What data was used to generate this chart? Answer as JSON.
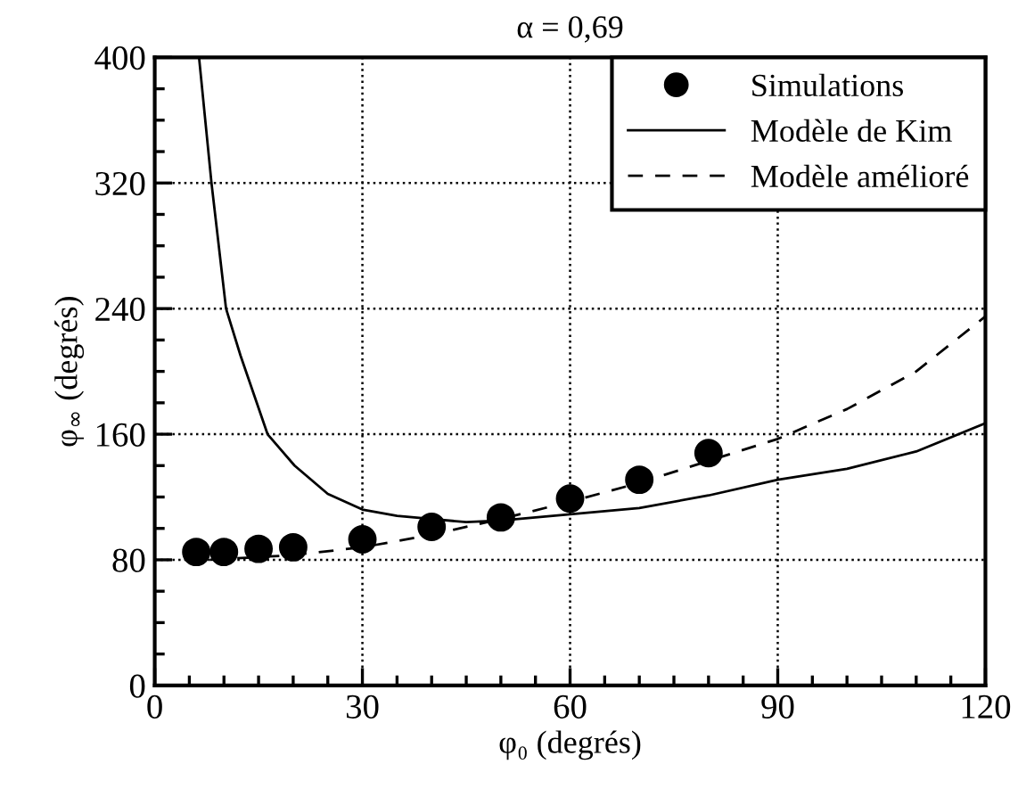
{
  "chart_data": {
    "type": "line",
    "title": "α = 0,69",
    "xlabel": "φ₀ (degrés)",
    "ylabel": "φ$_{∞}$ (degrés)",
    "xlim": [
      0,
      120
    ],
    "ylim": [
      0,
      400
    ],
    "xticks": [
      0,
      {
        "value": 5,
        "label": null
      },
      {
        "value": 10,
        "label": null
      },
      {
        "value": 15,
        "label": null
      },
      {
        "value": 20,
        "label": null
      },
      {
        "value": 25,
        "label": null
      },
      30,
      {
        "value": 35,
        "label": null
      },
      {
        "value": 40,
        "label": null
      },
      {
        "value": 45,
        "label": null
      },
      {
        "value": 50,
        "label": null
      },
      {
        "value": 55,
        "label": null
      },
      60,
      {
        "value": 65,
        "label": null
      },
      {
        "value": 70,
        "label": null
      },
      {
        "value": 75,
        "label": null
      },
      {
        "value": 80,
        "label": null
      },
      {
        "value": 85,
        "label": null
      },
      90,
      {
        "value": 95,
        "label": null
      },
      {
        "value": 100,
        "label": null
      },
      {
        "value": 105,
        "label": null
      },
      {
        "value": 110,
        "label": null
      },
      {
        "value": 115,
        "label": null
      },
      120
    ],
    "yticks": [
      0,
      {
        "value": 20,
        "label": null
      },
      {
        "value": 40,
        "label": null
      },
      {
        "value": 60,
        "label": null
      },
      80,
      {
        "value": 100,
        "label": null
      },
      {
        "value": 120,
        "label": null
      },
      {
        "value": 140,
        "label": null
      },
      160,
      {
        "value": 180,
        "label": null
      },
      {
        "value": 200,
        "label": null
      },
      {
        "value": 220,
        "label": null
      },
      240,
      {
        "value": 260,
        "label": null
      },
      {
        "value": 280,
        "label": null
      },
      {
        "value": 300,
        "label": null
      },
      320,
      {
        "value": 340,
        "label": null
      },
      {
        "value": 360,
        "label": null
      },
      {
        "value": 380,
        "label": null
      },
      400
    ],
    "grid": true,
    "legend": "top right",
    "series": [
      {
        "name": "Simulations",
        "type": "scatter",
        "marker": "circle",
        "color": "#000000",
        "x": [
          6,
          10,
          15,
          20,
          30,
          40,
          50,
          60,
          70,
          80
        ],
        "values": [
          85,
          85,
          87,
          88,
          93,
          101,
          107,
          119,
          131,
          148
        ]
      },
      {
        "name": "Modèle de Kim",
        "line_style": "solid",
        "color": "#000000",
        "x": [
          6.4,
          8.2,
          10.3,
          12.4,
          16.3,
          20.2,
          25,
          30,
          35,
          40,
          45,
          50,
          60,
          70,
          80,
          90,
          100,
          110,
          120
        ],
        "values": [
          400,
          320,
          240,
          210,
          160,
          140,
          122,
          112,
          108,
          106,
          104,
          105,
          109,
          113,
          121,
          131,
          138,
          149,
          167
        ]
      },
      {
        "name": "Modèle amélioré",
        "line_style": "dashed",
        "color": "#000000",
        "x": [
          8,
          20,
          30,
          40,
          50,
          60,
          70,
          80,
          90,
          100,
          110,
          120
        ],
        "values": [
          80,
          83,
          88,
          96,
          106,
          117,
          129,
          143,
          157,
          176,
          200,
          235
        ]
      }
    ]
  }
}
